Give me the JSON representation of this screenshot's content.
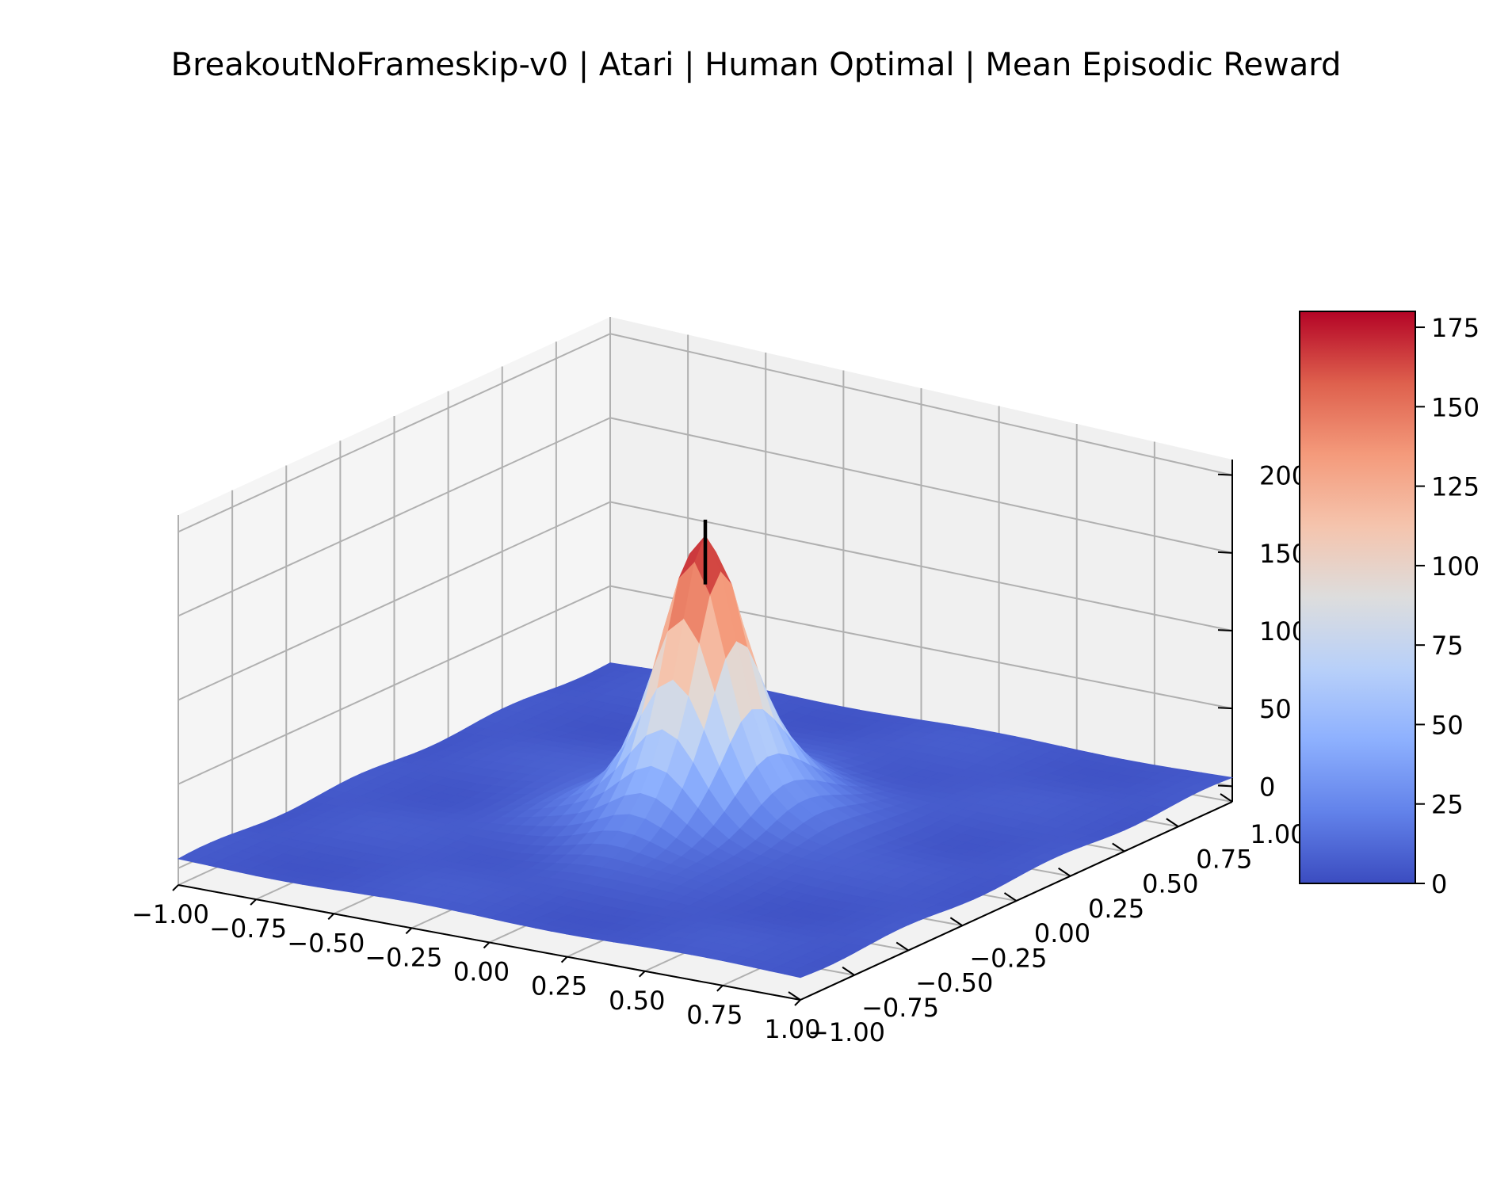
{
  "chart_data": {
    "type": "surface",
    "title": "BreakoutNoFrameskip-v0 | Atari | Human Optimal | Mean Episodic Reward",
    "xlabel": "",
    "ylabel": "",
    "zlabel": "",
    "colormap": "coolwarm",
    "grid": true,
    "x_ticks": [
      "−1.00",
      "−0.75",
      "−0.50",
      "−0.25",
      "0.00",
      "0.25",
      "0.50",
      "0.75",
      "1.00"
    ],
    "y_ticks": [
      "−1.00",
      "−0.75",
      "−0.50",
      "−0.25",
      "0.00",
      "0.25",
      "0.50",
      "0.75",
      "1.00"
    ],
    "z_ticks": [
      "0",
      "50",
      "100",
      "150",
      "200"
    ],
    "xlim": [
      -1.0,
      1.0
    ],
    "ylim": [
      -1.0,
      1.0
    ],
    "zlim": [
      -10,
      210
    ],
    "surface": {
      "grid_size": 41,
      "peak": {
        "x": 0.0,
        "y": 0.0,
        "z": 180
      },
      "max_value": 180,
      "base_value": 5
    },
    "optimum_marker": {
      "x": 0.0,
      "y": 0.0,
      "z_from": 150,
      "z_to": 190
    },
    "colorbar": {
      "ticks": [
        "0",
        "25",
        "50",
        "75",
        "100",
        "125",
        "150",
        "175"
      ],
      "range": [
        0,
        180
      ]
    }
  }
}
